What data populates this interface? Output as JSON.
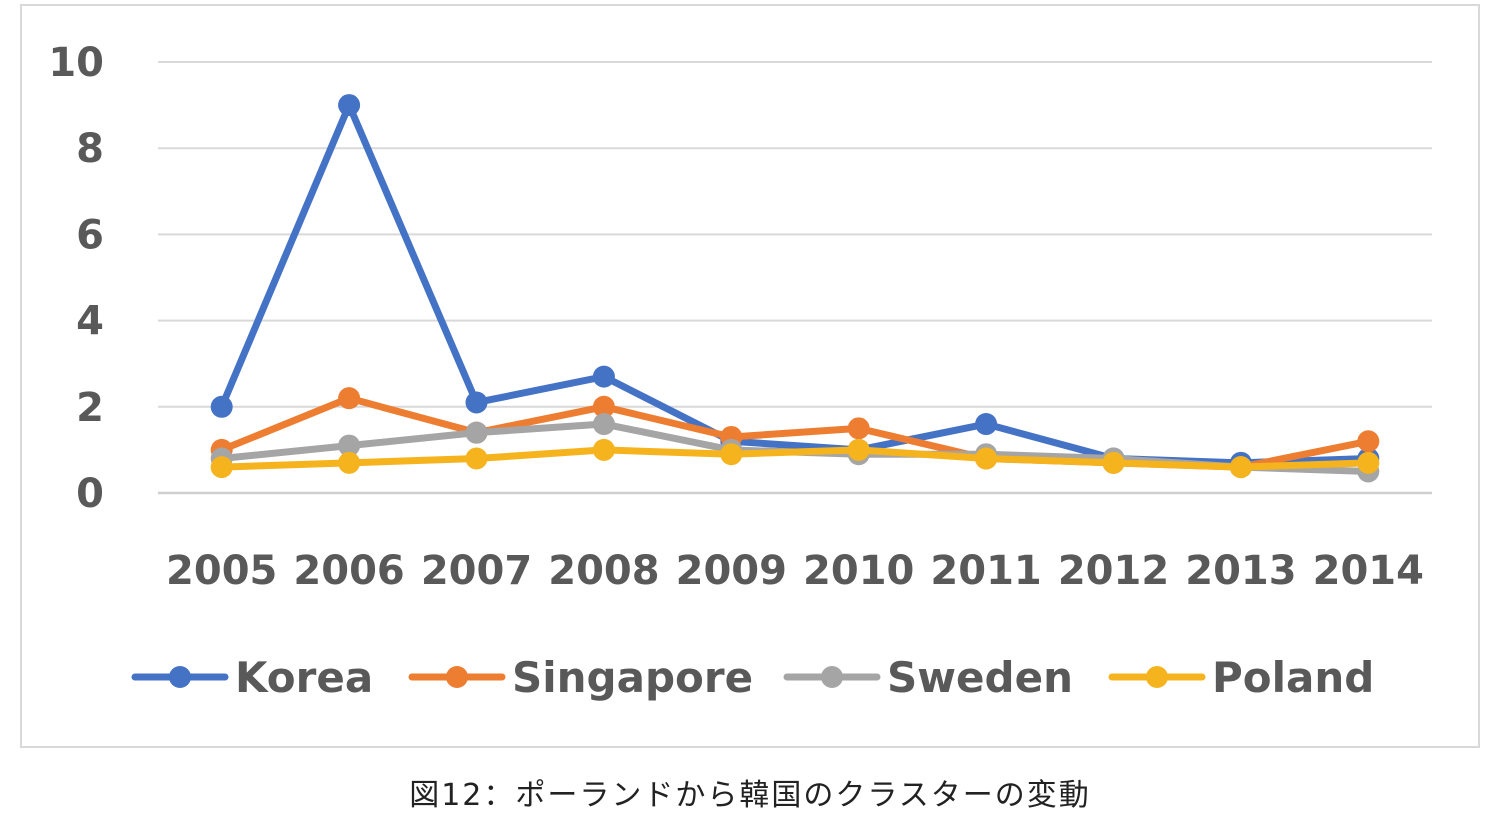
{
  "chart_data": {
    "type": "line",
    "categories": [
      "2005",
      "2006",
      "2007",
      "2008",
      "2009",
      "2010",
      "2011",
      "2012",
      "2013",
      "2014"
    ],
    "series": [
      {
        "name": "Korea",
        "color": "#4472C4",
        "values": [
          2.0,
          9.0,
          2.1,
          2.7,
          1.2,
          1.0,
          1.6,
          0.8,
          0.7,
          0.8
        ]
      },
      {
        "name": "Singapore",
        "color": "#ED7D31",
        "values": [
          1.0,
          2.2,
          1.4,
          2.0,
          1.3,
          1.5,
          0.8,
          0.7,
          0.6,
          1.2
        ]
      },
      {
        "name": "Sweden",
        "color": "#A5A5A5",
        "values": [
          0.8,
          1.1,
          1.4,
          1.6,
          1.0,
          0.9,
          0.9,
          0.8,
          0.6,
          0.5
        ]
      },
      {
        "name": "Poland",
        "color": "#F5B41E",
        "values": [
          0.6,
          0.7,
          0.8,
          1.0,
          0.9,
          1.0,
          0.8,
          0.7,
          0.6,
          0.7
        ]
      }
    ],
    "yticks": [
      "0",
      "2",
      "4",
      "6",
      "8",
      "10"
    ],
    "ylim": [
      0,
      10
    ],
    "grid": true,
    "legend_position": "bottom",
    "xlabel": "",
    "ylabel": ""
  },
  "caption": "図12：ポーランドから韓国のクラスターの変動"
}
